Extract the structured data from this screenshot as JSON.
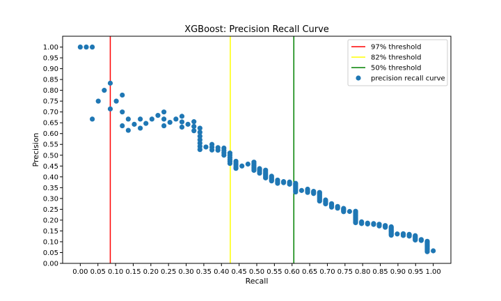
{
  "chart_data": {
    "type": "scatter",
    "title": "XGBoost: Precision Recall Curve",
    "xlabel": "Recall",
    "ylabel": "Precision",
    "xlim": [
      -0.05,
      1.05
    ],
    "ylim": [
      0.0,
      1.05
    ],
    "xticks": [
      0.0,
      0.05,
      0.1,
      0.15,
      0.2,
      0.25,
      0.3,
      0.35,
      0.4,
      0.45,
      0.5,
      0.55,
      0.6,
      0.65,
      0.7,
      0.75,
      0.8,
      0.85,
      0.9,
      0.95,
      1.0
    ],
    "xtick_labels": [
      "0.00",
      "0.05",
      "0.10",
      "0.15",
      "0.20",
      "0.25",
      "0.30",
      "0.35",
      "0.40",
      "0.45",
      "0.50",
      "0.55",
      "0.60",
      "0.65",
      "0.70",
      "0.75",
      "0.80",
      "0.85",
      "0.90",
      "0.95",
      "1.00"
    ],
    "yticks": [
      0.0,
      0.05,
      0.1,
      0.15,
      0.2,
      0.25,
      0.3,
      0.35,
      0.4,
      0.45,
      0.5,
      0.55,
      0.6,
      0.65,
      0.7,
      0.75,
      0.8,
      0.85,
      0.9,
      0.95,
      1.0
    ],
    "ytick_labels": [
      "0.00",
      "0.05",
      "0.10",
      "0.15",
      "0.20",
      "0.25",
      "0.30",
      "0.35",
      "0.40",
      "0.45",
      "0.50",
      "0.55",
      "0.60",
      "0.65",
      "0.70",
      "0.75",
      "0.80",
      "0.85",
      "0.90",
      "0.95",
      "1.00"
    ],
    "grid": false,
    "legend_position": "top-right",
    "threshold_lines": [
      {
        "name": "97% threshold",
        "x": 0.085,
        "color": "#ff0000"
      },
      {
        "name": "82% threshold",
        "x": 0.425,
        "color": "#ffff00"
      },
      {
        "name": "50% threshold",
        "x": 0.605,
        "color": "#008000"
      }
    ],
    "series": [
      {
        "name": "precision recall curve",
        "color": "#1f77b4",
        "points": [
          [
            0.0,
            1.0
          ],
          [
            0.017,
            1.0
          ],
          [
            0.034,
            1.0
          ],
          [
            0.034,
            0.667
          ],
          [
            0.051,
            0.75
          ],
          [
            0.068,
            0.8
          ],
          [
            0.085,
            0.833
          ],
          [
            0.085,
            0.714
          ],
          [
            0.102,
            0.75
          ],
          [
            0.119,
            0.778
          ],
          [
            0.119,
            0.7
          ],
          [
            0.119,
            0.636
          ],
          [
            0.136,
            0.667
          ],
          [
            0.136,
            0.615
          ],
          [
            0.153,
            0.643
          ],
          [
            0.17,
            0.667
          ],
          [
            0.17,
            0.625
          ],
          [
            0.186,
            0.647
          ],
          [
            0.203,
            0.667
          ],
          [
            0.22,
            0.684
          ],
          [
            0.237,
            0.7
          ],
          [
            0.237,
            0.667
          ],
          [
            0.237,
            0.636
          ],
          [
            0.254,
            0.652
          ],
          [
            0.271,
            0.667
          ],
          [
            0.288,
            0.68
          ],
          [
            0.288,
            0.654
          ],
          [
            0.288,
            0.63
          ],
          [
            0.305,
            0.643
          ],
          [
            0.322,
            0.655
          ],
          [
            0.322,
            0.633
          ],
          [
            0.322,
            0.613
          ],
          [
            0.339,
            0.625
          ],
          [
            0.339,
            0.606
          ],
          [
            0.339,
            0.588
          ],
          [
            0.339,
            0.571
          ],
          [
            0.339,
            0.556
          ],
          [
            0.339,
            0.541
          ],
          [
            0.339,
            0.526
          ],
          [
            0.356,
            0.538
          ],
          [
            0.373,
            0.55
          ],
          [
            0.373,
            0.537
          ],
          [
            0.373,
            0.524
          ],
          [
            0.39,
            0.535
          ],
          [
            0.39,
            0.523
          ],
          [
            0.407,
            0.533
          ],
          [
            0.407,
            0.522
          ],
          [
            0.407,
            0.511
          ],
          [
            0.407,
            0.5
          ],
          [
            0.424,
            0.51
          ],
          [
            0.424,
            0.5
          ],
          [
            0.424,
            0.49
          ],
          [
            0.424,
            0.48
          ],
          [
            0.424,
            0.471
          ],
          [
            0.424,
            0.462
          ],
          [
            0.441,
            0.472
          ],
          [
            0.441,
            0.464
          ],
          [
            0.441,
            0.455
          ],
          [
            0.441,
            0.446
          ],
          [
            0.441,
            0.439
          ],
          [
            0.458,
            0.45
          ],
          [
            0.475,
            0.459
          ],
          [
            0.492,
            0.468
          ],
          [
            0.492,
            0.46
          ],
          [
            0.492,
            0.452
          ],
          [
            0.492,
            0.444
          ],
          [
            0.492,
            0.436
          ],
          [
            0.492,
            0.43
          ],
          [
            0.508,
            0.438
          ],
          [
            0.508,
            0.431
          ],
          [
            0.508,
            0.424
          ],
          [
            0.508,
            0.417
          ],
          [
            0.525,
            0.431
          ],
          [
            0.525,
            0.425
          ],
          [
            0.525,
            0.419
          ],
          [
            0.525,
            0.413
          ],
          [
            0.525,
            0.407
          ],
          [
            0.525,
            0.401
          ],
          [
            0.525,
            0.395
          ],
          [
            0.542,
            0.403
          ],
          [
            0.542,
            0.397
          ],
          [
            0.542,
            0.392
          ],
          [
            0.542,
            0.386
          ],
          [
            0.542,
            0.381
          ],
          [
            0.559,
            0.385
          ],
          [
            0.559,
            0.38
          ],
          [
            0.559,
            0.375
          ],
          [
            0.559,
            0.37
          ],
          [
            0.576,
            0.378
          ],
          [
            0.576,
            0.373
          ],
          [
            0.593,
            0.376
          ],
          [
            0.593,
            0.371
          ],
          [
            0.593,
            0.366
          ],
          [
            0.61,
            0.37
          ],
          [
            0.61,
            0.365
          ],
          [
            0.61,
            0.36
          ],
          [
            0.61,
            0.355
          ],
          [
            0.61,
            0.35
          ],
          [
            0.61,
            0.345
          ],
          [
            0.61,
            0.34
          ],
          [
            0.61,
            0.335
          ],
          [
            0.61,
            0.33
          ],
          [
            0.627,
            0.337
          ],
          [
            0.644,
            0.343
          ],
          [
            0.644,
            0.338
          ],
          [
            0.644,
            0.333
          ],
          [
            0.644,
            0.328
          ],
          [
            0.661,
            0.333
          ],
          [
            0.661,
            0.328
          ],
          [
            0.661,
            0.323
          ],
          [
            0.678,
            0.328
          ],
          [
            0.678,
            0.323
          ],
          [
            0.678,
            0.318
          ],
          [
            0.678,
            0.313
          ],
          [
            0.678,
            0.308
          ],
          [
            0.678,
            0.303
          ],
          [
            0.678,
            0.298
          ],
          [
            0.678,
            0.293
          ],
          [
            0.678,
            0.288
          ],
          [
            0.695,
            0.293
          ],
          [
            0.695,
            0.288
          ],
          [
            0.695,
            0.284
          ],
          [
            0.695,
            0.279
          ],
          [
            0.695,
            0.275
          ],
          [
            0.712,
            0.276
          ],
          [
            0.712,
            0.272
          ],
          [
            0.712,
            0.268
          ],
          [
            0.712,
            0.264
          ],
          [
            0.712,
            0.26
          ],
          [
            0.729,
            0.263
          ],
          [
            0.729,
            0.259
          ],
          [
            0.729,
            0.255
          ],
          [
            0.746,
            0.254
          ],
          [
            0.746,
            0.25
          ],
          [
            0.746,
            0.246
          ],
          [
            0.746,
            0.243
          ],
          [
            0.746,
            0.239
          ],
          [
            0.763,
            0.24
          ],
          [
            0.78,
            0.241
          ],
          [
            0.78,
            0.238
          ],
          [
            0.78,
            0.234
          ],
          [
            0.78,
            0.231
          ],
          [
            0.78,
            0.227
          ],
          [
            0.78,
            0.223
          ],
          [
            0.78,
            0.22
          ],
          [
            0.78,
            0.216
          ],
          [
            0.78,
            0.212
          ],
          [
            0.78,
            0.208
          ],
          [
            0.78,
            0.204
          ],
          [
            0.78,
            0.2
          ],
          [
            0.78,
            0.196
          ],
          [
            0.78,
            0.192
          ],
          [
            0.78,
            0.188
          ],
          [
            0.797,
            0.192
          ],
          [
            0.797,
            0.188
          ],
          [
            0.797,
            0.184
          ],
          [
            0.814,
            0.186
          ],
          [
            0.814,
            0.182
          ],
          [
            0.831,
            0.184
          ],
          [
            0.831,
            0.18
          ],
          [
            0.847,
            0.181
          ],
          [
            0.847,
            0.177
          ],
          [
            0.847,
            0.173
          ],
          [
            0.864,
            0.175
          ],
          [
            0.864,
            0.171
          ],
          [
            0.864,
            0.167
          ],
          [
            0.881,
            0.169
          ],
          [
            0.881,
            0.165
          ],
          [
            0.881,
            0.161
          ],
          [
            0.881,
            0.157
          ],
          [
            0.881,
            0.153
          ],
          [
            0.881,
            0.15
          ],
          [
            0.881,
            0.146
          ],
          [
            0.881,
            0.142
          ],
          [
            0.881,
            0.138
          ],
          [
            0.881,
            0.134
          ],
          [
            0.881,
            0.13
          ],
          [
            0.898,
            0.136
          ],
          [
            0.915,
            0.137
          ],
          [
            0.915,
            0.133
          ],
          [
            0.915,
            0.129
          ],
          [
            0.932,
            0.134
          ],
          [
            0.932,
            0.13
          ],
          [
            0.932,
            0.126
          ],
          [
            0.949,
            0.128
          ],
          [
            0.949,
            0.124
          ],
          [
            0.949,
            0.12
          ],
          [
            0.949,
            0.116
          ],
          [
            0.949,
            0.112
          ],
          [
            0.949,
            0.108
          ],
          [
            0.966,
            0.11
          ],
          [
            0.966,
            0.106
          ],
          [
            0.983,
            0.102
          ],
          [
            0.983,
            0.098
          ],
          [
            0.983,
            0.094
          ],
          [
            0.983,
            0.09
          ],
          [
            0.983,
            0.086
          ],
          [
            0.983,
            0.082
          ],
          [
            0.983,
            0.078
          ],
          [
            0.983,
            0.074
          ],
          [
            0.983,
            0.07
          ],
          [
            0.983,
            0.066
          ],
          [
            0.983,
            0.062
          ],
          [
            0.983,
            0.058
          ],
          [
            0.983,
            0.054
          ],
          [
            1.0,
            0.058
          ]
        ]
      }
    ]
  }
}
